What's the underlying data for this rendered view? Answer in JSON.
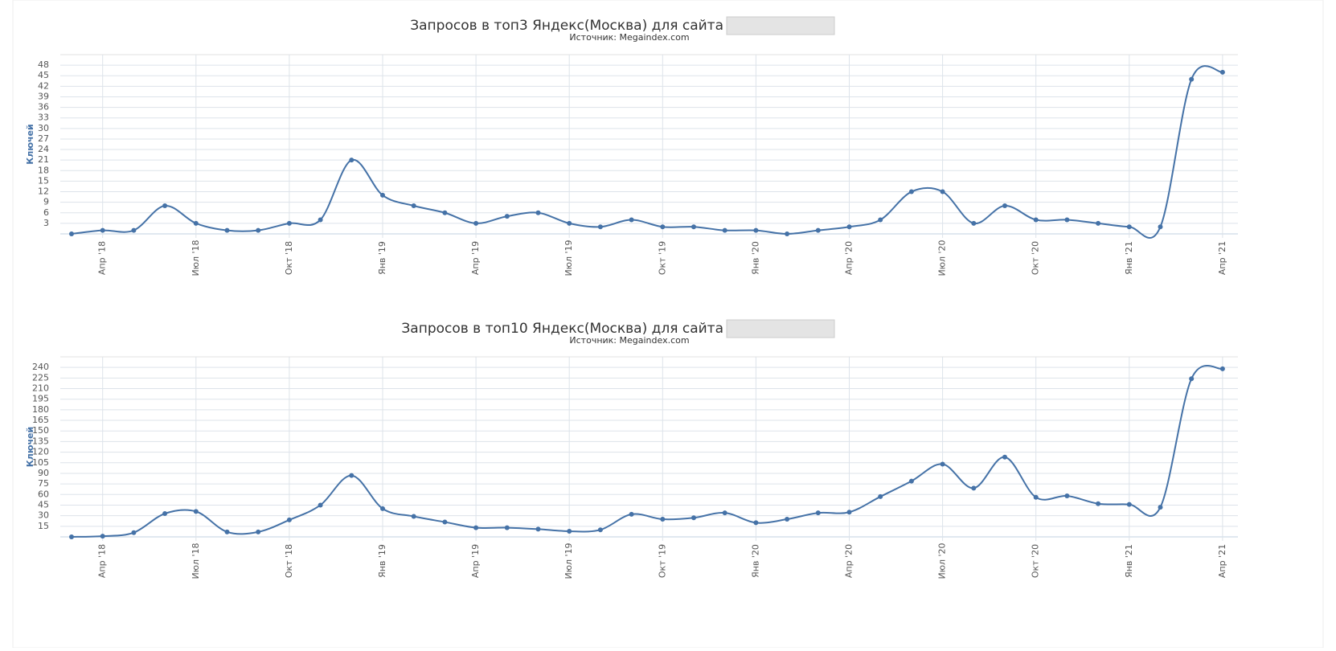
{
  "chart_data": [
    {
      "type": "line",
      "title": "Запросов в топ3 Яндекс(Москва) для сайта",
      "subtitle": "Источник: Megaindex.com",
      "y_label": "Ключей",
      "categories": [
        null,
        "Апр '18",
        null,
        null,
        "Июл '18",
        null,
        null,
        "Окт '18",
        null,
        null,
        "Янв '19",
        null,
        null,
        "Апр '19",
        null,
        null,
        "Июл '19",
        null,
        null,
        "Окт '19",
        null,
        null,
        "Янв '20",
        null,
        null,
        "Апр '20",
        null,
        null,
        "Июл '20",
        null,
        null,
        "Окт '20",
        null,
        null,
        "Янв '21",
        null,
        null,
        "Апр '21"
      ],
      "values": [
        0,
        1,
        1,
        8,
        3,
        1,
        1,
        3,
        4,
        21,
        11,
        8,
        6,
        3,
        5,
        6,
        3,
        2,
        4,
        2,
        2,
        1,
        1,
        0,
        1,
        2,
        4,
        12,
        12,
        3,
        8,
        4,
        4,
        3,
        2,
        2,
        44,
        46
      ],
      "color": "#4572a7",
      "ylim": [
        0,
        51
      ],
      "yticks": [
        3,
        6,
        9,
        12,
        15,
        18,
        21,
        24,
        27,
        30,
        33,
        36,
        39,
        42,
        45,
        48
      ],
      "grid": true
    },
    {
      "type": "line",
      "title": "Запросов в топ10 Яндекс(Москва) для сайта",
      "subtitle": "Источник: Megaindex.com",
      "y_label": "Ключей",
      "categories": [
        null,
        "Апр '18",
        null,
        null,
        "Июл '18",
        null,
        null,
        "Окт '18",
        null,
        null,
        "Янв '19",
        null,
        null,
        "Апр '19",
        null,
        null,
        "Июл '19",
        null,
        null,
        "Окт '19",
        null,
        null,
        "Янв '20",
        null,
        null,
        "Апр '20",
        null,
        null,
        "Июл '20",
        null,
        null,
        "Окт '20",
        null,
        null,
        "Янв '21",
        null,
        null,
        "Апр '21"
      ],
      "values": [
        0,
        1,
        6,
        33,
        36,
        7,
        7,
        24,
        45,
        87,
        40,
        29,
        21,
        13,
        13,
        11,
        8,
        10,
        32,
        25,
        27,
        34,
        20,
        25,
        34,
        35,
        57,
        79,
        103,
        69,
        113,
        56,
        58,
        47,
        46,
        42,
        224,
        238
      ],
      "color": "#4572a7",
      "ylim": [
        0,
        255
      ],
      "yticks": [
        15,
        30,
        45,
        60,
        75,
        90,
        105,
        120,
        135,
        150,
        165,
        180,
        195,
        210,
        225,
        240
      ],
      "grid": true
    }
  ]
}
